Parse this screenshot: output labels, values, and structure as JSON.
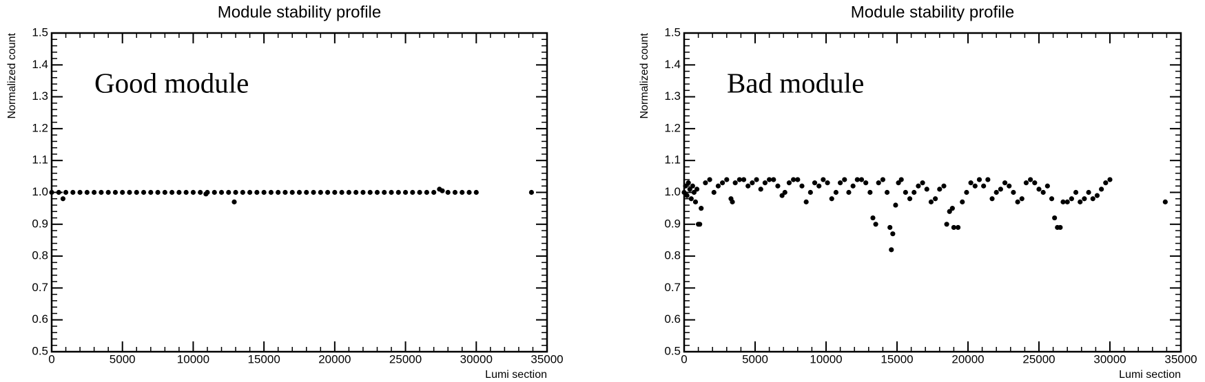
{
  "chart_data": [
    {
      "type": "scatter",
      "title": "Module stability profile",
      "xlabel": "Lumi section",
      "ylabel": "Normalized count",
      "annotation": "Good module",
      "annotation_color": "#ff0000",
      "color": "#000000",
      "xlim": [
        0,
        35000
      ],
      "ylim": [
        0.5,
        1.5
      ],
      "xticks": [
        0,
        5000,
        10000,
        15000,
        20000,
        25000,
        30000,
        35000
      ],
      "yticks": [
        0.5,
        0.6,
        0.7,
        0.8,
        0.9,
        {
          "value": 1.0,
          "label": "1.0"
        },
        1.1,
        1.2,
        1.3,
        1.4,
        1.5
      ],
      "x": [
        0,
        500,
        1000,
        1500,
        2000,
        2500,
        3000,
        3500,
        4000,
        4500,
        5000,
        5500,
        6000,
        6500,
        7000,
        7500,
        8000,
        8500,
        9000,
        9500,
        10000,
        10500,
        11000,
        11500,
        12000,
        12500,
        13000,
        13500,
        14000,
        14500,
        15000,
        15500,
        16000,
        16500,
        17000,
        17500,
        18000,
        18500,
        19000,
        19500,
        20000,
        20500,
        21000,
        21500,
        22000,
        22500,
        23000,
        23500,
        24000,
        24500,
        25000,
        25500,
        26000,
        26500,
        27000,
        28000,
        28500,
        29000,
        29500,
        30000,
        800,
        10900,
        12900,
        27400,
        27600,
        33900
      ],
      "y": [
        1,
        1,
        1,
        1,
        1,
        1,
        1,
        1,
        1,
        1,
        1,
        1,
        1,
        1,
        1,
        1,
        1,
        1,
        1,
        1,
        1,
        1,
        1,
        1,
        1,
        1,
        1,
        1,
        1,
        1,
        1,
        1,
        1,
        1,
        1,
        1,
        1,
        1,
        1,
        1,
        1,
        1,
        1,
        1,
        1,
        1,
        1,
        1,
        1,
        1,
        1,
        1,
        1,
        1,
        1,
        1,
        1,
        1,
        1,
        1,
        0.98,
        0.995,
        0.97,
        1.01,
        1.005,
        1.0
      ]
    },
    {
      "type": "scatter",
      "title": "Module stability profile",
      "xlabel": "Lumi section",
      "ylabel": "Normalized count",
      "annotation": "Bad module",
      "annotation_color": "#ff0000",
      "color": "#000000",
      "xlim": [
        0,
        35000
      ],
      "ylim": [
        0.5,
        1.5
      ],
      "xticks": [
        0,
        5000,
        10000,
        15000,
        20000,
        25000,
        30000,
        35000
      ],
      "yticks": [
        0.5,
        0.6,
        0.7,
        0.8,
        0.9,
        {
          "value": 1.0,
          "label": "1.0"
        },
        1.1,
        1.2,
        1.3,
        1.4,
        1.5
      ],
      "x": [
        0,
        100,
        200,
        300,
        400,
        500,
        600,
        700,
        800,
        900,
        1000,
        1100,
        1200,
        1500,
        1800,
        2100,
        2400,
        2700,
        3000,
        3300,
        3400,
        3600,
        3900,
        4200,
        4500,
        4800,
        5100,
        5400,
        5700,
        6000,
        6300,
        6600,
        6900,
        7100,
        7400,
        7700,
        8000,
        8300,
        8600,
        8900,
        9200,
        9500,
        9800,
        10100,
        10400,
        10700,
        11000,
        11300,
        11600,
        11900,
        12200,
        12500,
        12800,
        13100,
        13300,
        13500,
        13700,
        14000,
        14300,
        14500,
        14600,
        14700,
        14900,
        15100,
        15300,
        15600,
        15900,
        16200,
        16500,
        16800,
        17100,
        17400,
        17700,
        18000,
        18300,
        18500,
        18700,
        18900,
        19000,
        19300,
        19600,
        19900,
        20200,
        20500,
        20800,
        21100,
        21400,
        21700,
        22000,
        22300,
        22600,
        22900,
        23200,
        23500,
        23800,
        24100,
        24400,
        24700,
        25000,
        25300,
        25600,
        25900,
        26100,
        26300,
        26500,
        26700,
        27000,
        27300,
        27600,
        27900,
        28200,
        28500,
        28800,
        29100,
        29400,
        29700,
        30000,
        33900
      ],
      "y": [
        1.0,
        1.02,
        0.99,
        1.03,
        1.01,
        0.98,
        1.02,
        1.0,
        0.97,
        1.01,
        0.9,
        0.9,
        0.95,
        1.03,
        1.04,
        1.0,
        1.02,
        1.03,
        1.04,
        0.98,
        0.97,
        1.03,
        1.04,
        1.04,
        1.02,
        1.03,
        1.04,
        1.01,
        1.03,
        1.04,
        1.04,
        1.02,
        0.99,
        1.0,
        1.03,
        1.04,
        1.04,
        1.02,
        0.97,
        1.0,
        1.03,
        1.02,
        1.04,
        1.03,
        0.98,
        1.0,
        1.03,
        1.04,
        1.0,
        1.02,
        1.04,
        1.04,
        1.03,
        1.0,
        0.92,
        0.9,
        1.03,
        1.04,
        1.0,
        0.89,
        0.82,
        0.87,
        0.96,
        1.03,
        1.04,
        1.0,
        0.98,
        1.0,
        1.02,
        1.03,
        1.01,
        0.97,
        0.98,
        1.01,
        1.02,
        0.9,
        0.94,
        0.95,
        0.89,
        0.89,
        0.97,
        1.0,
        1.03,
        1.02,
        1.04,
        1.02,
        1.04,
        0.98,
        1.0,
        1.01,
        1.03,
        1.02,
        1.0,
        0.97,
        0.98,
        1.03,
        1.04,
        1.03,
        1.01,
        1.0,
        1.02,
        0.98,
        0.92,
        0.89,
        0.89,
        0.97,
        0.97,
        0.98,
        1.0,
        0.97,
        0.98,
        1.0,
        0.98,
        0.99,
        1.01,
        1.03,
        1.04,
        0.97
      ]
    }
  ]
}
